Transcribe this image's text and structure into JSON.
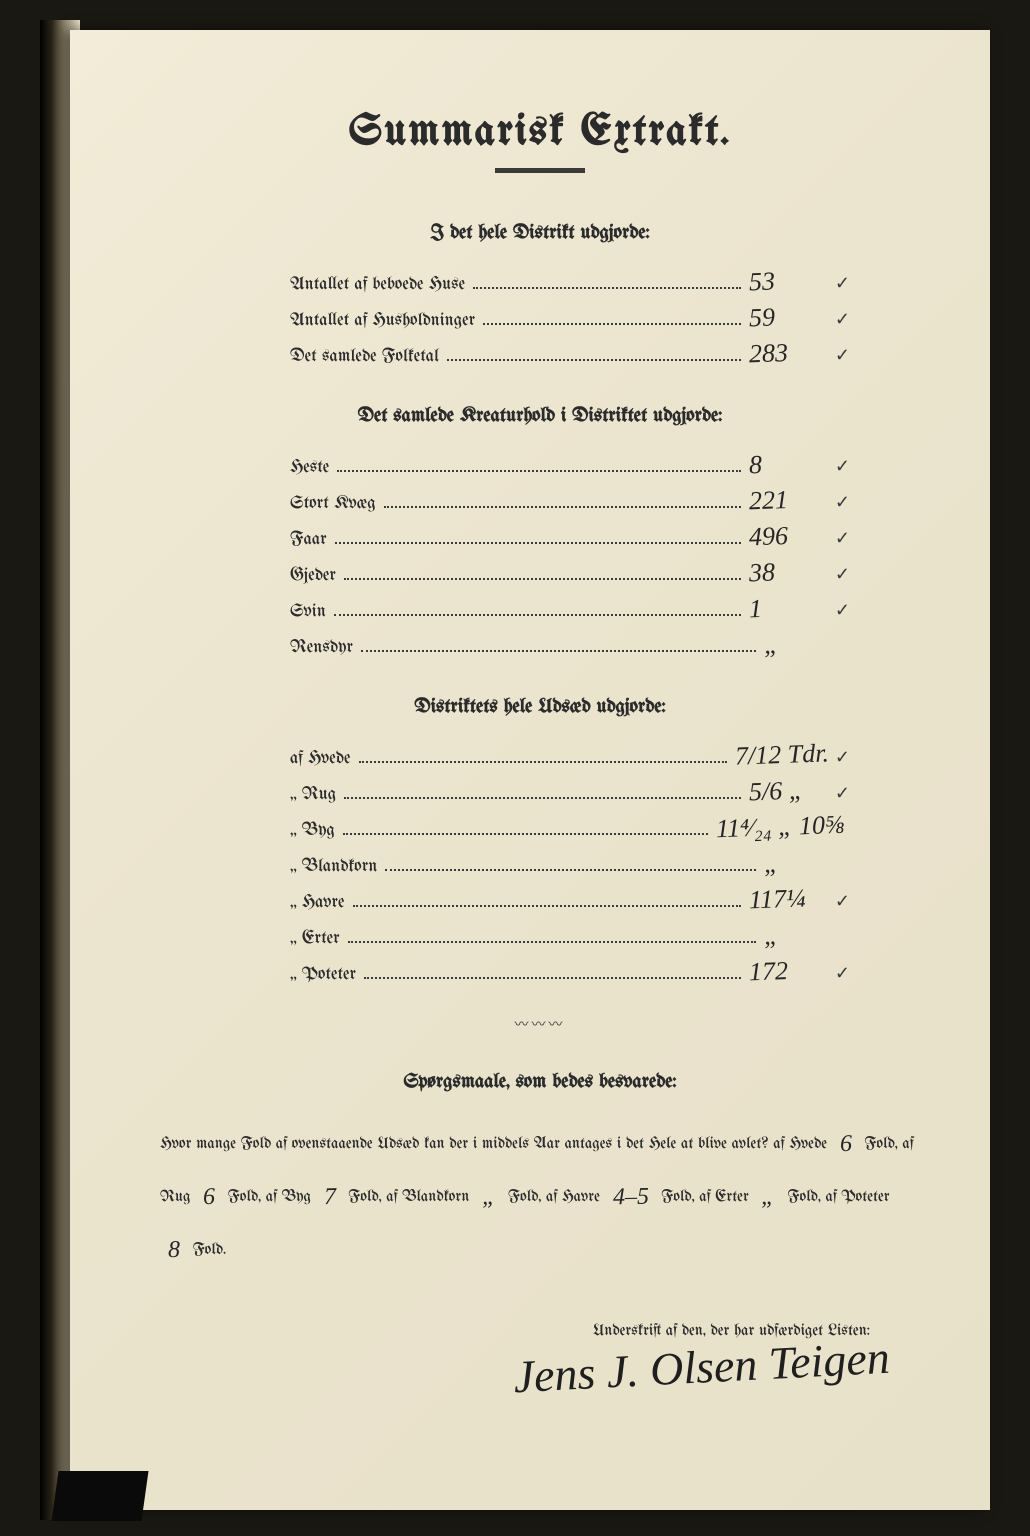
{
  "title": "Summarisk Extrakt.",
  "section1": {
    "heading": "I det hele Distrikt udgjorde:",
    "rows": [
      {
        "label": "Antallet af beboede Huse",
        "value": "53",
        "tick": "✓"
      },
      {
        "label": "Antallet af Husholdninger",
        "value": "59",
        "tick": "✓"
      },
      {
        "label": "Det samlede Folketal",
        "value": "283",
        "tick": "✓"
      }
    ]
  },
  "section2": {
    "heading": "Det samlede Kreaturhold i Distriktet udgjorde:",
    "rows": [
      {
        "label": "Heste",
        "value": "8",
        "tick": "✓"
      },
      {
        "label": "Stort Kvæg",
        "value": "221",
        "tick": "✓"
      },
      {
        "label": "Faar",
        "value": "496",
        "tick": "✓"
      },
      {
        "label": "Gjeder",
        "value": "38",
        "tick": "✓"
      },
      {
        "label": "Svin",
        "value": "1",
        "tick": "✓"
      },
      {
        "label": "Rensdyr",
        "value": "„",
        "tick": ""
      }
    ]
  },
  "section3": {
    "heading": "Distriktets hele Udsæd udgjorde:",
    "rows": [
      {
        "label": "af Hvede",
        "value": "7/12 Tdr.",
        "tick": "✓"
      },
      {
        "label": "„ Rug",
        "value": "5/6 „",
        "tick": "✓"
      },
      {
        "label": "„ Byg",
        "value": "11⁴⁄₂₄ „ 10⅝",
        "tick": ""
      },
      {
        "label": "„ Blandkorn",
        "value": "„",
        "tick": ""
      },
      {
        "label": "„ Havre",
        "value": "117¼",
        "tick": "✓"
      },
      {
        "label": "„ Erter",
        "value": "„",
        "tick": ""
      },
      {
        "label": "„ Poteter",
        "value": "172",
        "tick": "✓"
      }
    ]
  },
  "questions": {
    "heading": "Spørgsmaale, som bedes besvarede:",
    "intro": "Hvor mange Fold af ovenstaaende Udsæd kan der i middels Aar antages i det Hele at blive avlet?",
    "items": [
      {
        "prefix": "af Hvede",
        "value": "6",
        "suffix": "Fold,"
      },
      {
        "prefix": "af Rug",
        "value": "6",
        "suffix": "Fold,"
      },
      {
        "prefix": "af Byg",
        "value": "7",
        "suffix": "Fold,"
      },
      {
        "prefix": "af Blandkorn",
        "value": "„",
        "suffix": "Fold,"
      },
      {
        "prefix": "af Havre",
        "value": "4–5",
        "suffix": "Fold,"
      },
      {
        "prefix": "af Erter",
        "value": "„",
        "suffix": "Fold,"
      },
      {
        "prefix": "af Poteter",
        "value": "8",
        "suffix": "Fold."
      }
    ]
  },
  "signature": {
    "label": "Underskrift af den, der har udfærdiget Listen:",
    "name": "Jens J. Olsen Teigen"
  }
}
